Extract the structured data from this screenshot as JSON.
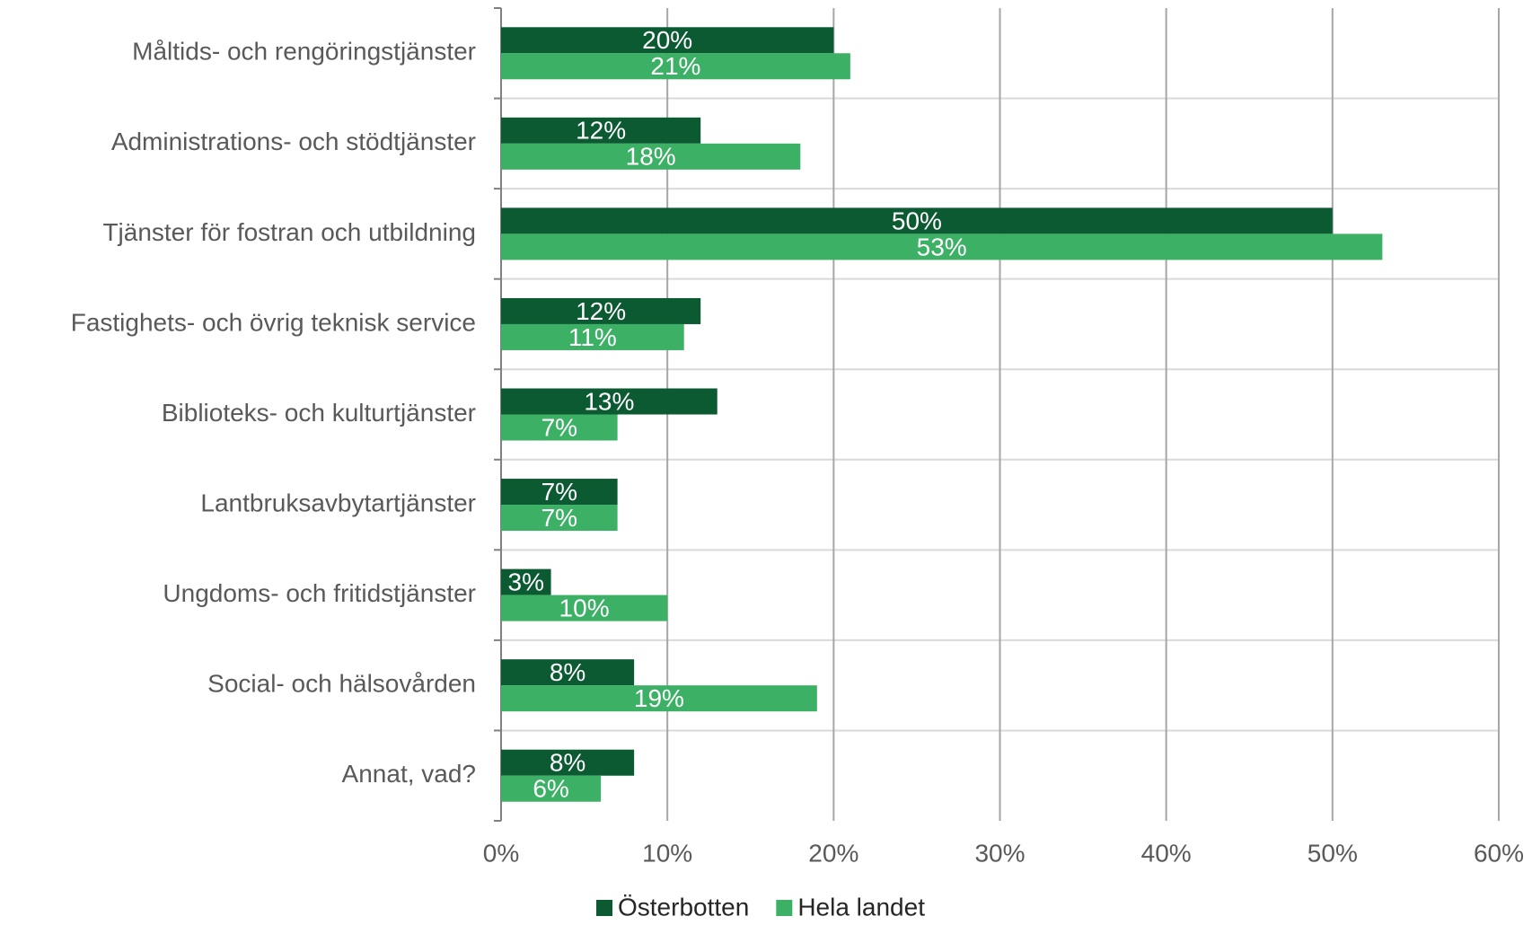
{
  "chart_data": {
    "type": "bar",
    "orientation": "horizontal",
    "categories": [
      "Måltids- och rengöringstjänster",
      "Administrations- och stödtjänster",
      "Tjänster för fostran och utbildning",
      "Fastighets- och övrig teknisk service",
      "Biblioteks- och kulturtjänster",
      "Lantbruksavbytartjänster",
      "Ungdoms- och fritidstjänster",
      "Social- och hälsovården",
      "Annat, vad?"
    ],
    "series": [
      {
        "name": "Österbotten",
        "color": "#0b5a32",
        "values": [
          20,
          12,
          50,
          12,
          13,
          7,
          3,
          8,
          8
        ],
        "value_labels": [
          "20%",
          "12%",
          "50%",
          "12%",
          "13%",
          "7%",
          "3%",
          "8%",
          "8%"
        ]
      },
      {
        "name": "Hela landet",
        "color": "#3cb165",
        "values": [
          21,
          18,
          53,
          11,
          7,
          7,
          10,
          19,
          6
        ],
        "value_labels": [
          "21%",
          "18%",
          "53%",
          "11%",
          "7%",
          "7%",
          "10%",
          "19%",
          "6%"
        ]
      }
    ],
    "xlim": [
      0,
      60
    ],
    "xticks": [
      {
        "value": 0,
        "label": "0%"
      },
      {
        "value": 10,
        "label": "10%"
      },
      {
        "value": 20,
        "label": "20%"
      },
      {
        "value": 30,
        "label": "30%"
      },
      {
        "value": 40,
        "label": "40%"
      },
      {
        "value": 50,
        "label": "50%"
      },
      {
        "value": 60,
        "label": "60%"
      }
    ],
    "grid": true,
    "legend": "bottom"
  }
}
